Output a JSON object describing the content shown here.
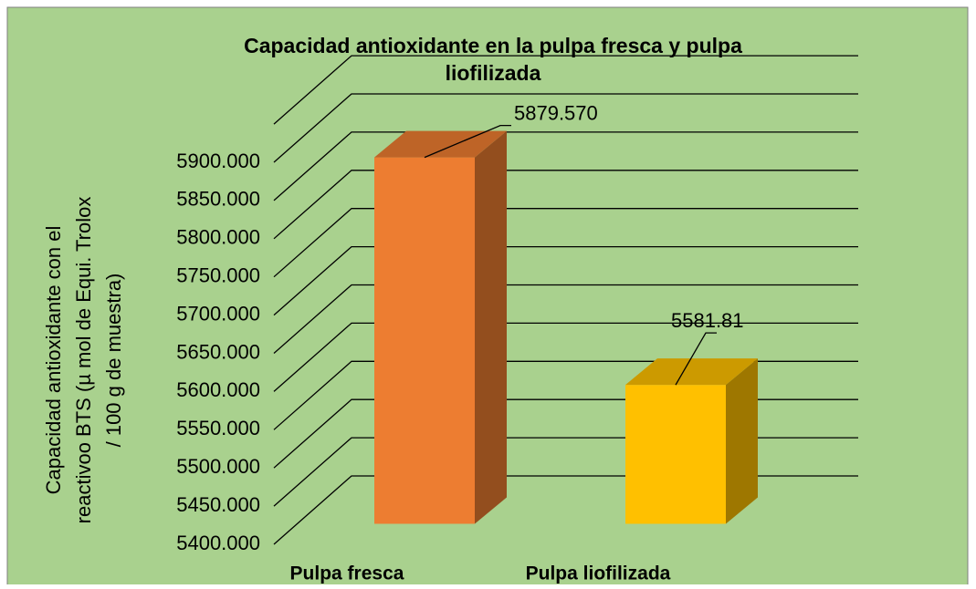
{
  "chart_data": {
    "type": "bar3d",
    "title": [
      "Capacidad antioxidante en la pulpa fresca y pulpa",
      "liofilizada"
    ],
    "y_label": [
      "Capacidad antioxidante con el",
      "reactivoo BTS (µ mol de Equi. Trolox",
      "/ 100 g de muestra)"
    ],
    "categories": [
      "Pulpa fresca",
      "Pulpa liofilizada"
    ],
    "values": [
      5879.57,
      5581.81
    ],
    "value_labels": [
      "5879.570",
      "5581.81"
    ],
    "colors": [
      "#ed7d31",
      "#ffc000"
    ],
    "ylim": [
      5400,
      5950
    ],
    "yticks": [
      {
        "value": 5400,
        "label": "5400.000"
      },
      {
        "value": 5450,
        "label": "5450.000"
      },
      {
        "value": 5500,
        "label": "5500.000"
      },
      {
        "value": 5550,
        "label": "5550.000"
      },
      {
        "value": 5600,
        "label": "5600.000"
      },
      {
        "value": 5650,
        "label": "5650.000"
      },
      {
        "value": 5700,
        "label": "5700.000"
      },
      {
        "value": 5750,
        "label": "5750.000"
      },
      {
        "value": 5800,
        "label": "5800.000"
      },
      {
        "value": 5850,
        "label": "5850.000"
      },
      {
        "value": 5900,
        "label": "5900.000"
      }
    ],
    "grid": true
  }
}
